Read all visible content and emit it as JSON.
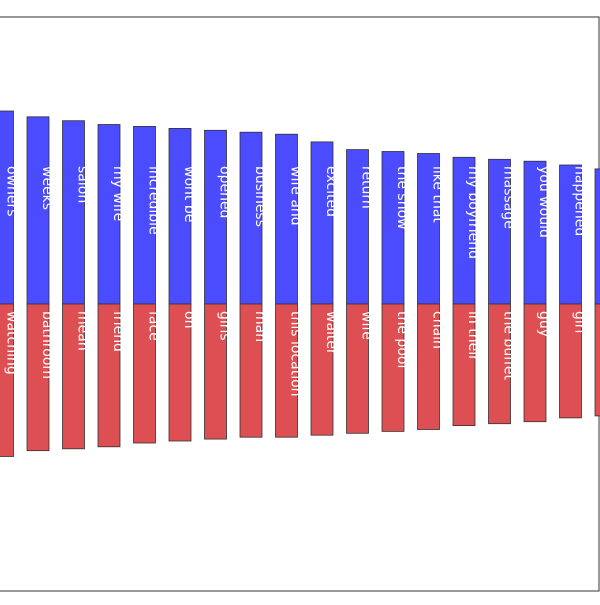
{
  "chart_data": {
    "type": "bar",
    "orientation": "vertical",
    "layout": "diverging",
    "title": "",
    "xlabel": "",
    "ylabel": "",
    "grid": false,
    "legend": "none",
    "colors": {
      "positive": "#4b4bff",
      "negative": "#dd4f52",
      "frame": "#555555"
    },
    "ylim": [
      -1.0,
      1.33
    ],
    "series": [
      {
        "name": "",
        "sign": "positive",
        "labels": [
          "owners",
          "weeks",
          "salon",
          "my wife",
          "incredible",
          "wont be",
          "opened",
          "business",
          "wife and",
          "excited",
          "return",
          "the show",
          "like that",
          "my boyfriend",
          "massage",
          "you would",
          "happened",
          "..."
        ],
        "values": [
          1.0,
          0.97,
          0.95,
          0.93,
          0.92,
          0.91,
          0.9,
          0.89,
          0.88,
          0.84,
          0.8,
          0.79,
          0.78,
          0.76,
          0.75,
          0.74,
          0.72,
          0.7
        ]
      },
      {
        "name": "",
        "sign": "negative",
        "labels": [
          "watching",
          "bathroom",
          "mean",
          "friend",
          "face",
          "oh",
          "girls",
          "man",
          "this location",
          "waiter",
          "wife",
          "the pool",
          "chain",
          "in their",
          "the buffet",
          "guy",
          "girl",
          "..."
        ],
        "values": [
          -0.79,
          -0.76,
          -0.75,
          -0.74,
          -0.72,
          -0.71,
          -0.7,
          -0.69,
          -0.69,
          -0.68,
          -0.67,
          -0.66,
          -0.65,
          -0.63,
          -0.62,
          -0.61,
          -0.59,
          -0.58
        ]
      }
    ]
  }
}
